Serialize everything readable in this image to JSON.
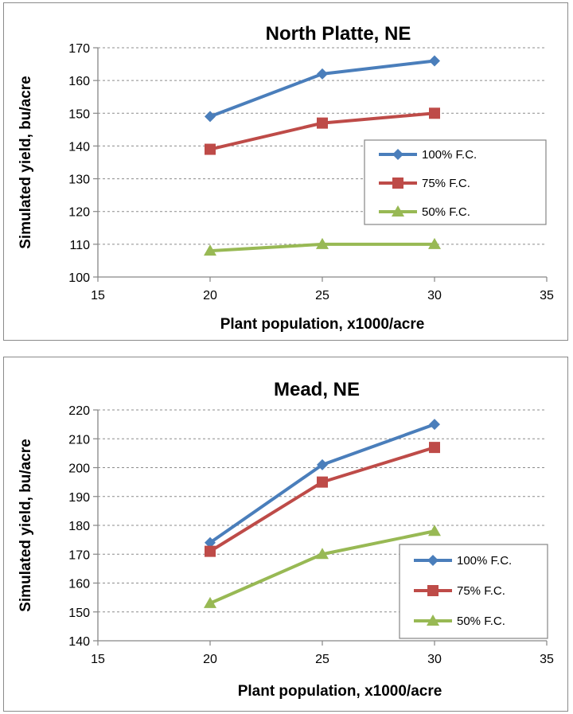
{
  "chart_data": [
    {
      "type": "line",
      "title": "North Platte, NE",
      "xlabel": "Plant population, x1000/acre",
      "ylabel": "Simulated yield, bu/acre",
      "x": [
        20,
        25,
        30
      ],
      "xlim": [
        15,
        35
      ],
      "xticks": [
        15,
        20,
        25,
        30,
        35
      ],
      "xtick_labels": [
        "15",
        "20",
        "25",
        "30",
        "35"
      ],
      "ylim": [
        100,
        170
      ],
      "yticks": [
        100,
        110,
        120,
        130,
        140,
        150,
        160,
        170
      ],
      "ytick_labels": [
        "100",
        "110",
        "120",
        "130",
        "140",
        "150",
        "160",
        "170"
      ],
      "grid": "horizontal dashed",
      "legend_position": "center-right",
      "series": [
        {
          "name": "100% F.C.",
          "values": [
            149,
            162,
            166
          ],
          "color": "#4a7ebb",
          "marker": "diamond"
        },
        {
          "name": "75% F.C.",
          "values": [
            139,
            147,
            150
          ],
          "color": "#be4b48",
          "marker": "square"
        },
        {
          "name": "50% F.C.",
          "values": [
            108,
            110,
            110
          ],
          "color": "#98b954",
          "marker": "triangle"
        }
      ]
    },
    {
      "type": "line",
      "title": "Mead, NE",
      "xlabel": "Plant population, x1000/acre",
      "ylabel": "Simulated yield, bu/acre",
      "x": [
        20,
        25,
        30
      ],
      "xlim": [
        15,
        35
      ],
      "xticks": [
        15,
        20,
        25,
        30,
        35
      ],
      "xtick_labels": [
        "15",
        "20",
        "25",
        "30",
        "35"
      ],
      "ylim": [
        140,
        220
      ],
      "yticks": [
        140,
        150,
        160,
        170,
        180,
        190,
        200,
        210,
        220
      ],
      "ytick_labels": [
        "140",
        "150",
        "160",
        "170",
        "180",
        "190",
        "200",
        "210",
        "220"
      ],
      "grid": "horizontal dashed",
      "legend_position": "bottom-right",
      "series": [
        {
          "name": "100% F.C.",
          "values": [
            174,
            201,
            215
          ],
          "color": "#4a7ebb",
          "marker": "diamond"
        },
        {
          "name": "75% F.C.",
          "values": [
            171,
            195,
            207
          ],
          "color": "#be4b48",
          "marker": "square"
        },
        {
          "name": "50% F.C.",
          "values": [
            153,
            170,
            178
          ],
          "color": "#98b954",
          "marker": "triangle"
        }
      ]
    }
  ]
}
